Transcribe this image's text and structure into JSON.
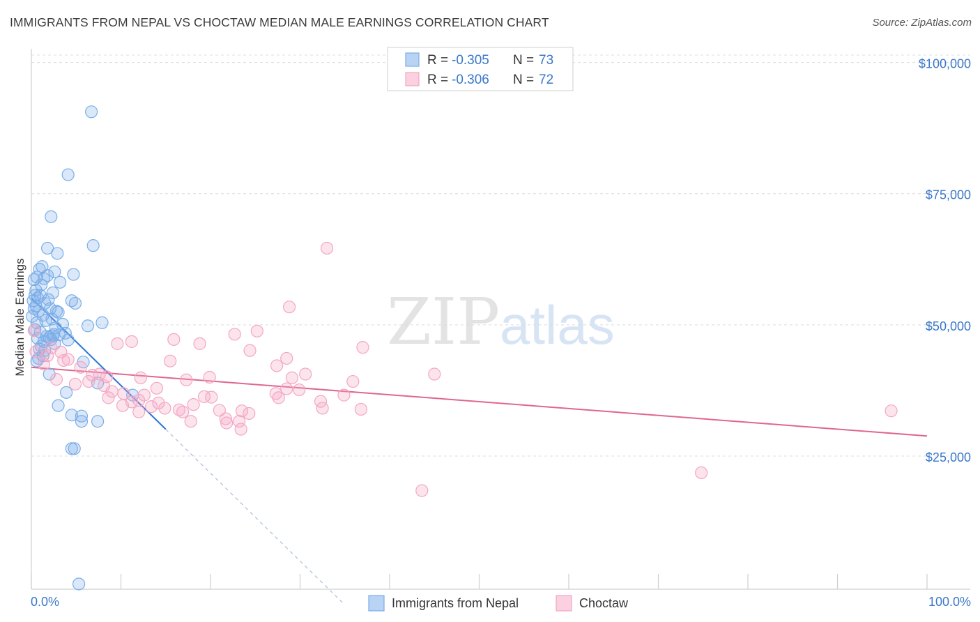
{
  "title": "IMMIGRANTS FROM NEPAL VS CHOCTAW MEDIAN MALE EARNINGS CORRELATION CHART",
  "source": "Source: ZipAtlas.com",
  "watermark": {
    "zip": "ZIP",
    "atlas": "atlas"
  },
  "chart_data": {
    "type": "scatter",
    "title": "IMMIGRANTS FROM NEPAL VS CHOCTAW MEDIAN MALE EARNINGS CORRELATION CHART",
    "xlabel": "",
    "ylabel": "Median Male Earnings",
    "xlim": [
      0,
      100
    ],
    "ylim": [
      2000,
      105000
    ],
    "x_tick_labels": [
      {
        "value": 0,
        "label": "0.0%"
      },
      {
        "value": 100,
        "label": "100.0%"
      }
    ],
    "y_ticks": [
      {
        "value": 25000,
        "label": "$25,000"
      },
      {
        "value": 50000,
        "label": "$50,000"
      },
      {
        "value": 75000,
        "label": "$75,000"
      },
      {
        "value": 100000,
        "label": "$100,000"
      }
    ],
    "grid": true,
    "legend_position": "top-center",
    "series": [
      {
        "name": "Immigrants from Nepal",
        "color": "#7aaee8",
        "line_color": "#2b74d6",
        "r_label": "R =",
        "r_value": "-0.305",
        "n_label": "N =",
        "n_value": "73",
        "trend": {
          "x0": 0,
          "y0": 57500,
          "x1": 15,
          "y1": 32500,
          "dash_to_x": 35,
          "dash_to_y": -1000
        },
        "points": [
          [
            6.7,
            93000
          ],
          [
            4.1,
            81000
          ],
          [
            2.2,
            73000
          ],
          [
            6.9,
            67500
          ],
          [
            1.8,
            67000
          ],
          [
            2.9,
            66000
          ],
          [
            1.2,
            63500
          ],
          [
            0.9,
            63000
          ],
          [
            2.6,
            62500
          ],
          [
            4.7,
            62000
          ],
          [
            0.6,
            61500
          ],
          [
            1.4,
            61200
          ],
          [
            0.3,
            61000
          ],
          [
            3.2,
            60500
          ],
          [
            1.1,
            60000
          ],
          [
            2.4,
            58500
          ],
          [
            0.4,
            58000
          ],
          [
            0.7,
            57500
          ],
          [
            1.9,
            57200
          ],
          [
            0.2,
            57000
          ],
          [
            4.5,
            57000
          ],
          [
            1.5,
            56500
          ],
          [
            0.5,
            56000
          ],
          [
            2.1,
            55500
          ],
          [
            4.9,
            56500
          ],
          [
            0.8,
            55000
          ],
          [
            3.0,
            54800
          ],
          [
            1.3,
            54200
          ],
          [
            0.1,
            54000
          ],
          [
            2.3,
            53500
          ],
          [
            1.6,
            53200
          ],
          [
            0.6,
            52800
          ],
          [
            7.9,
            52800
          ],
          [
            3.5,
            52500
          ],
          [
            6.3,
            52200
          ],
          [
            2.7,
            51800
          ],
          [
            0.4,
            51500
          ],
          [
            1.0,
            51000
          ],
          [
            2.5,
            50600
          ],
          [
            3.1,
            50500
          ],
          [
            1.7,
            50200
          ],
          [
            2.0,
            50000
          ],
          [
            2.2,
            49600
          ],
          [
            4.1,
            49500
          ],
          [
            1.4,
            49200
          ],
          [
            2.6,
            48800
          ],
          [
            1.1,
            48300
          ],
          [
            0.9,
            47800
          ],
          [
            1.5,
            47500
          ],
          [
            1.3,
            46500
          ],
          [
            0.8,
            46000
          ],
          [
            0.6,
            45500
          ],
          [
            5.8,
            45300
          ],
          [
            2.0,
            43000
          ],
          [
            7.4,
            41300
          ],
          [
            3.9,
            39500
          ],
          [
            11.3,
            39000
          ],
          [
            3.0,
            37000
          ],
          [
            4.5,
            35200
          ],
          [
            5.6,
            35000
          ],
          [
            5.6,
            34000
          ],
          [
            7.4,
            34000
          ],
          [
            4.5,
            28800
          ],
          [
            4.8,
            28800
          ],
          [
            5.3,
            3000
          ],
          [
            0.5,
            59000
          ],
          [
            1.0,
            58000
          ],
          [
            2.8,
            55000
          ],
          [
            3.8,
            50800
          ],
          [
            0.3,
            55500
          ],
          [
            1.8,
            61800
          ],
          [
            0.7,
            49800
          ],
          [
            2.4,
            50300
          ]
        ]
      },
      {
        "name": "Choctaw",
        "color": "#f4a6c2",
        "line_color": "#e0668e",
        "r_label": "R =",
        "r_value": "-0.306",
        "n_label": "N =",
        "n_value": "72",
        "trend": {
          "x0": 0,
          "y0": 44300,
          "x1": 100,
          "y1": 31200
        },
        "points": [
          [
            33.0,
            67000
          ],
          [
            28.8,
            55800
          ],
          [
            25.2,
            51200
          ],
          [
            22.7,
            50600
          ],
          [
            15.9,
            49600
          ],
          [
            11.2,
            49200
          ],
          [
            9.6,
            48800
          ],
          [
            18.8,
            48800
          ],
          [
            37.0,
            48100
          ],
          [
            24.4,
            47500
          ],
          [
            2.2,
            48000
          ],
          [
            3.3,
            47200
          ],
          [
            0.5,
            47300
          ],
          [
            28.5,
            46000
          ],
          [
            1.8,
            46500
          ],
          [
            4.1,
            45800
          ],
          [
            15.5,
            45500
          ],
          [
            27.4,
            44600
          ],
          [
            30.6,
            43000
          ],
          [
            45.0,
            43000
          ],
          [
            7.6,
            43000
          ],
          [
            6.8,
            42800
          ],
          [
            8.4,
            42500
          ],
          [
            19.9,
            42400
          ],
          [
            12.2,
            42300
          ],
          [
            17.3,
            41900
          ],
          [
            29.1,
            42300
          ],
          [
            2.8,
            42000
          ],
          [
            6.4,
            41600
          ],
          [
            35.9,
            41600
          ],
          [
            4.9,
            41100
          ],
          [
            8.1,
            40800
          ],
          [
            14.0,
            40300
          ],
          [
            28.5,
            40200
          ],
          [
            29.9,
            40000
          ],
          [
            9.0,
            39700
          ],
          [
            27.3,
            39300
          ],
          [
            10.3,
            39300
          ],
          [
            12.6,
            39000
          ],
          [
            34.9,
            39000
          ],
          [
            19.3,
            38700
          ],
          [
            8.6,
            38500
          ],
          [
            20.1,
            38600
          ],
          [
            27.6,
            38500
          ],
          [
            12.0,
            38000
          ],
          [
            11.2,
            37700
          ],
          [
            14.2,
            37500
          ],
          [
            32.3,
            37800
          ],
          [
            10.2,
            37000
          ],
          [
            13.4,
            36800
          ],
          [
            18.1,
            37200
          ],
          [
            14.9,
            36500
          ],
          [
            16.5,
            36200
          ],
          [
            36.8,
            36300
          ],
          [
            21.0,
            36100
          ],
          [
            23.5,
            36000
          ],
          [
            24.3,
            35500
          ],
          [
            32.5,
            36500
          ],
          [
            16.9,
            35800
          ],
          [
            96.0,
            36000
          ],
          [
            12.0,
            35800
          ],
          [
            21.7,
            34500
          ],
          [
            23.2,
            34000
          ],
          [
            17.8,
            34000
          ],
          [
            21.8,
            33700
          ],
          [
            23.4,
            32500
          ],
          [
            74.8,
            24200
          ],
          [
            43.6,
            20800
          ],
          [
            0.3,
            51300
          ],
          [
            1.4,
            44900
          ],
          [
            5.5,
            44300
          ],
          [
            3.6,
            45600
          ]
        ]
      }
    ]
  }
}
